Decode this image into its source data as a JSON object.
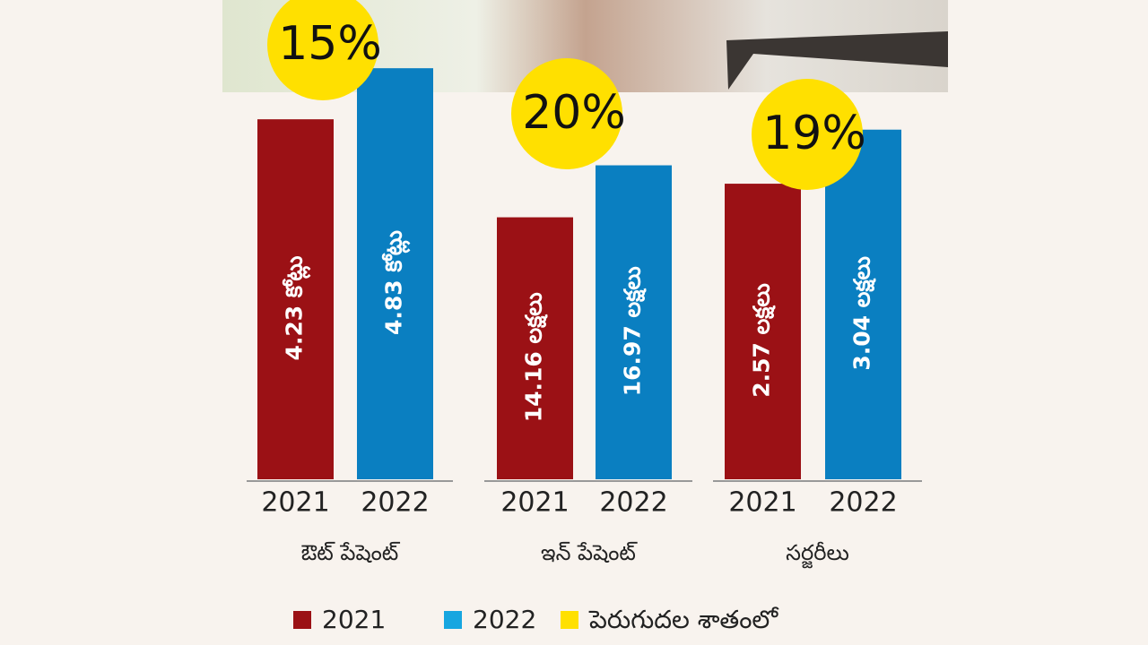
{
  "legend": [
    {
      "name": "2021",
      "color": "#9b1115"
    },
    {
      "name": "2022",
      "color": "#17a6e0"
    },
    {
      "name": "పెరుగుదల శాతంలో",
      "color": "#ffe000"
    }
  ],
  "chart_data": [
    {
      "type": "bar",
      "xlabel": "ఔట్ పేషెంట్",
      "categories": [
        "2021",
        "2022"
      ],
      "values": [
        4.23,
        4.83
      ],
      "value_labels": [
        "4.23 కోట్లు",
        "4.83 కోట్లు"
      ],
      "colors": [
        "#9b1115",
        "#0a7fc1"
      ],
      "ylim": [
        0,
        5
      ],
      "growth": {
        "value": 15,
        "label": "15%"
      }
    },
    {
      "type": "bar",
      "xlabel": "ఇన్ పేషెంట్",
      "categories": [
        "2021",
        "2022"
      ],
      "values": [
        14.16,
        16.97
      ],
      "value_labels": [
        "14.16 లక్షలు",
        "16.97 లక్షలు"
      ],
      "colors": [
        "#9b1115",
        "#0a7fc1"
      ],
      "ylim": [
        0,
        23
      ],
      "growth": {
        "value": 20,
        "label": "20%"
      }
    },
    {
      "type": "bar",
      "xlabel": "సర్జరీలు",
      "categories": [
        "2021",
        "2022"
      ],
      "values": [
        2.57,
        3.04
      ],
      "value_labels": [
        "2.57 లక్షలు",
        "3.04 లక్షలు"
      ],
      "colors": [
        "#9b1115",
        "#0a7fc1"
      ],
      "ylim": [
        0,
        3.7
      ],
      "growth": {
        "value": 19,
        "label": "19%"
      }
    }
  ]
}
